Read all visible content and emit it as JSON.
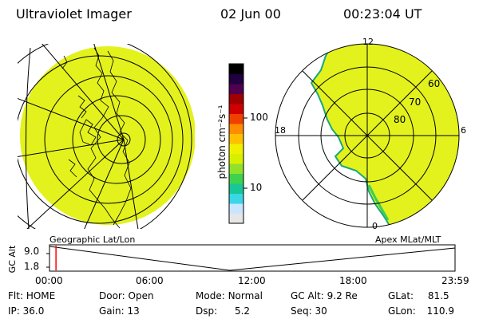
{
  "header": {
    "title": "Ultraviolet Imager",
    "date": "02 Jun 00",
    "time": "00:23:04 UT"
  },
  "left_panel": {
    "caption": "Geographic Lat/Lon"
  },
  "right_panel": {
    "caption": "Apex MLat/MLT",
    "mlt_labels": {
      "top": "12",
      "left": "18",
      "right": "6",
      "bottom": "0"
    },
    "lat_labels": [
      "60",
      "70",
      "80"
    ]
  },
  "colorbar": {
    "unit_label": "photon cm⁻²s⁻¹",
    "ticks": [
      {
        "label": "100",
        "value": 100
      },
      {
        "label": "10",
        "value": 10
      }
    ],
    "colors": [
      "#e6e6e6",
      "#c8e6ff",
      "#39d7e8",
      "#17c797",
      "#3ed24e",
      "#8fe12a",
      "#d8f000",
      "#f0f000",
      "#ffc000",
      "#ff8c00",
      "#f04000",
      "#d00000",
      "#a00000",
      "#500050",
      "#200040",
      "#000000"
    ]
  },
  "timeline": {
    "ylabel": "GC Alt",
    "yticks": [
      "9.0",
      "1.8"
    ],
    "xticks": [
      "00:00",
      "06:00",
      "12:00",
      "18:00",
      "23:59"
    ],
    "current_time_fraction": 0.016
  },
  "status": {
    "row1": [
      {
        "label": "Flt:",
        "value": "HOME"
      },
      {
        "label": "Door:",
        "value": "Open"
      },
      {
        "label": "Mode:",
        "value": "Normal"
      },
      {
        "label": "GC Alt:",
        "value": "9.2 Re"
      },
      {
        "label": "GLat:",
        "value": "81.5"
      }
    ],
    "row2": [
      {
        "label": "IP:",
        "value": "36.0"
      },
      {
        "label": "Gain:",
        "value": "13"
      },
      {
        "label": "Dsp:",
        "value": "5.2"
      },
      {
        "label": "Seq:",
        "value": "30"
      },
      {
        "label": "GLon:",
        "value": "110.9"
      }
    ]
  },
  "image_fill_color": "#e3f21c"
}
